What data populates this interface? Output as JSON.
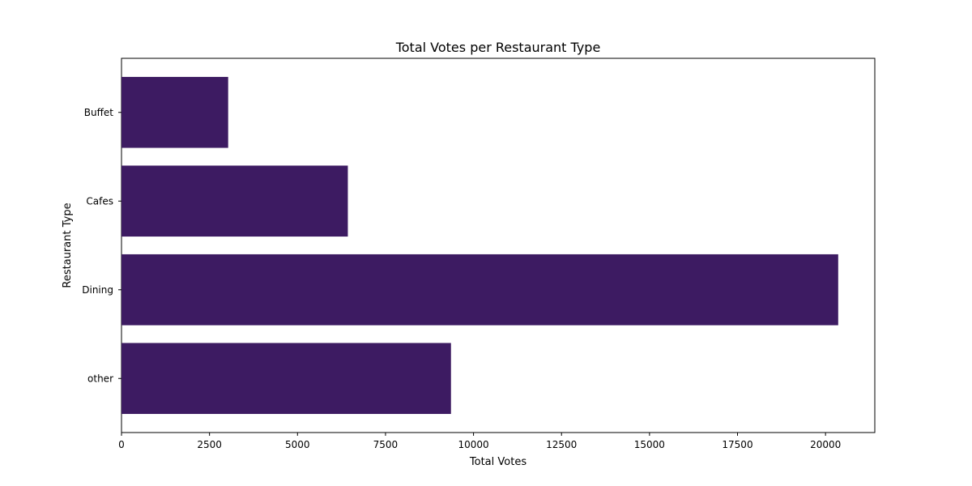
{
  "chart_data": {
    "type": "bar",
    "orientation": "horizontal",
    "title": "Total Votes per Restaurant Type",
    "xlabel": "Total Votes",
    "ylabel": "Restaurant Type",
    "categories": [
      "Buffet",
      "Cafes",
      "Dining",
      "other"
    ],
    "values": [
      3030,
      6430,
      20360,
      9360
    ],
    "xlim": [
      0,
      21400
    ],
    "xticks": [
      0,
      2500,
      5000,
      7500,
      10000,
      12500,
      15000,
      17500,
      20000
    ],
    "grid": false,
    "bar_color": "#3d1b62"
  }
}
